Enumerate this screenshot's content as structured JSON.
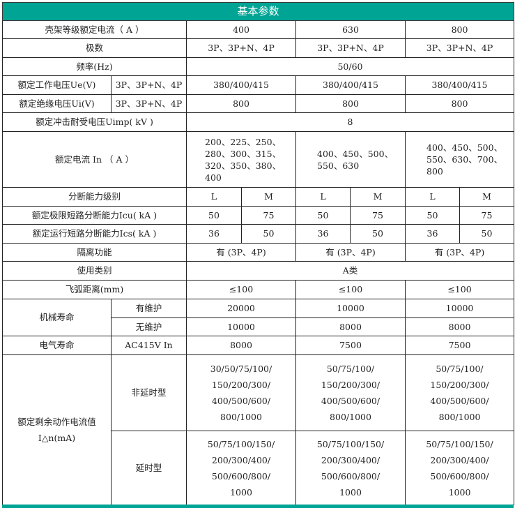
{
  "title": "基本参数",
  "frame_current": {
    "label": "壳架等级额定电流（ A ）",
    "values": [
      "400",
      "630",
      "800"
    ]
  },
  "poles": {
    "label": "极数",
    "values": [
      "3P、3P+N、4P",
      "3P、3P+N、4P",
      "3P、3P+N、4P"
    ]
  },
  "frequency": {
    "label": "频率(Hz)",
    "value": "50/60"
  },
  "ue": {
    "label": "额定工作电压Ue(V)",
    "sub": "3P、3P+N、4P",
    "values": [
      "380/400/415",
      "380/400/415",
      "380/400/415"
    ]
  },
  "ui": {
    "label": "额定绝缘电压Ui(V)",
    "sub": "3P、3P+N、4P",
    "values": [
      "800",
      "800",
      "800"
    ]
  },
  "uimp": {
    "label": "额定冲击耐受电压Uimp( kV )",
    "value": "8"
  },
  "in": {
    "label": "额定电流 In （ A ）",
    "values": [
      "200、225、250、280、300、315、320、350、380、400",
      "400、450、500、550、630",
      "400、450、500、550、630、700、800"
    ]
  },
  "breaking_level": {
    "label": "分断能力级别",
    "values": [
      "L",
      "M",
      "L",
      "M",
      "L",
      "M"
    ]
  },
  "icu": {
    "label": "额定极限短路分断能力Icu( kA )",
    "values": [
      "50",
      "75",
      "50",
      "75",
      "50",
      "75"
    ]
  },
  "ics": {
    "label": "额定运行短路分断能力Ics( kA )",
    "values": [
      "36",
      "50",
      "36",
      "50",
      "36",
      "50"
    ]
  },
  "isolation": {
    "label": "隔离功能",
    "values": [
      "有 (3P、4P)",
      "有 (3P、4P)",
      "有 (3P、4P)"
    ]
  },
  "category": {
    "label": "使用类别",
    "value": "A类"
  },
  "arc": {
    "label": "飞弧距离(mm)",
    "values": [
      "≤100",
      "≤100",
      "≤100"
    ]
  },
  "mech": {
    "label": "机械寿命",
    "maint": {
      "label": "有维护",
      "values": [
        "20000",
        "10000",
        "10000"
      ]
    },
    "nomaint": {
      "label": "无维护",
      "values": [
        "10000",
        "8000",
        "8000"
      ]
    }
  },
  "elec": {
    "label": "电气寿命",
    "sub": "AC415V In",
    "values": [
      "8000",
      "7500",
      "7500"
    ]
  },
  "residual": {
    "label": "额定剩余动作电流值",
    "label2": "I△n(mA)",
    "non_delay": {
      "label": "非延时型",
      "values": [
        "30/50/75/100/ 150/200/300/ 400/500/600/ 800/1000",
        "50/75/100/ 150/200/300/ 400/500/600/ 800/1000",
        "50/75/100/ 150/200/300/ 400/500/600/ 800/1000"
      ]
    },
    "delay": {
      "label": "延时型",
      "values": [
        "50/75/100/150/ 200/300/400/ 500/600/800/ 1000",
        "50/75/100/150/ 200/300/400/ 500/600/800/ 1000",
        "50/75/100/150/ 200/300/400/ 500/600/800/ 1000"
      ]
    }
  }
}
